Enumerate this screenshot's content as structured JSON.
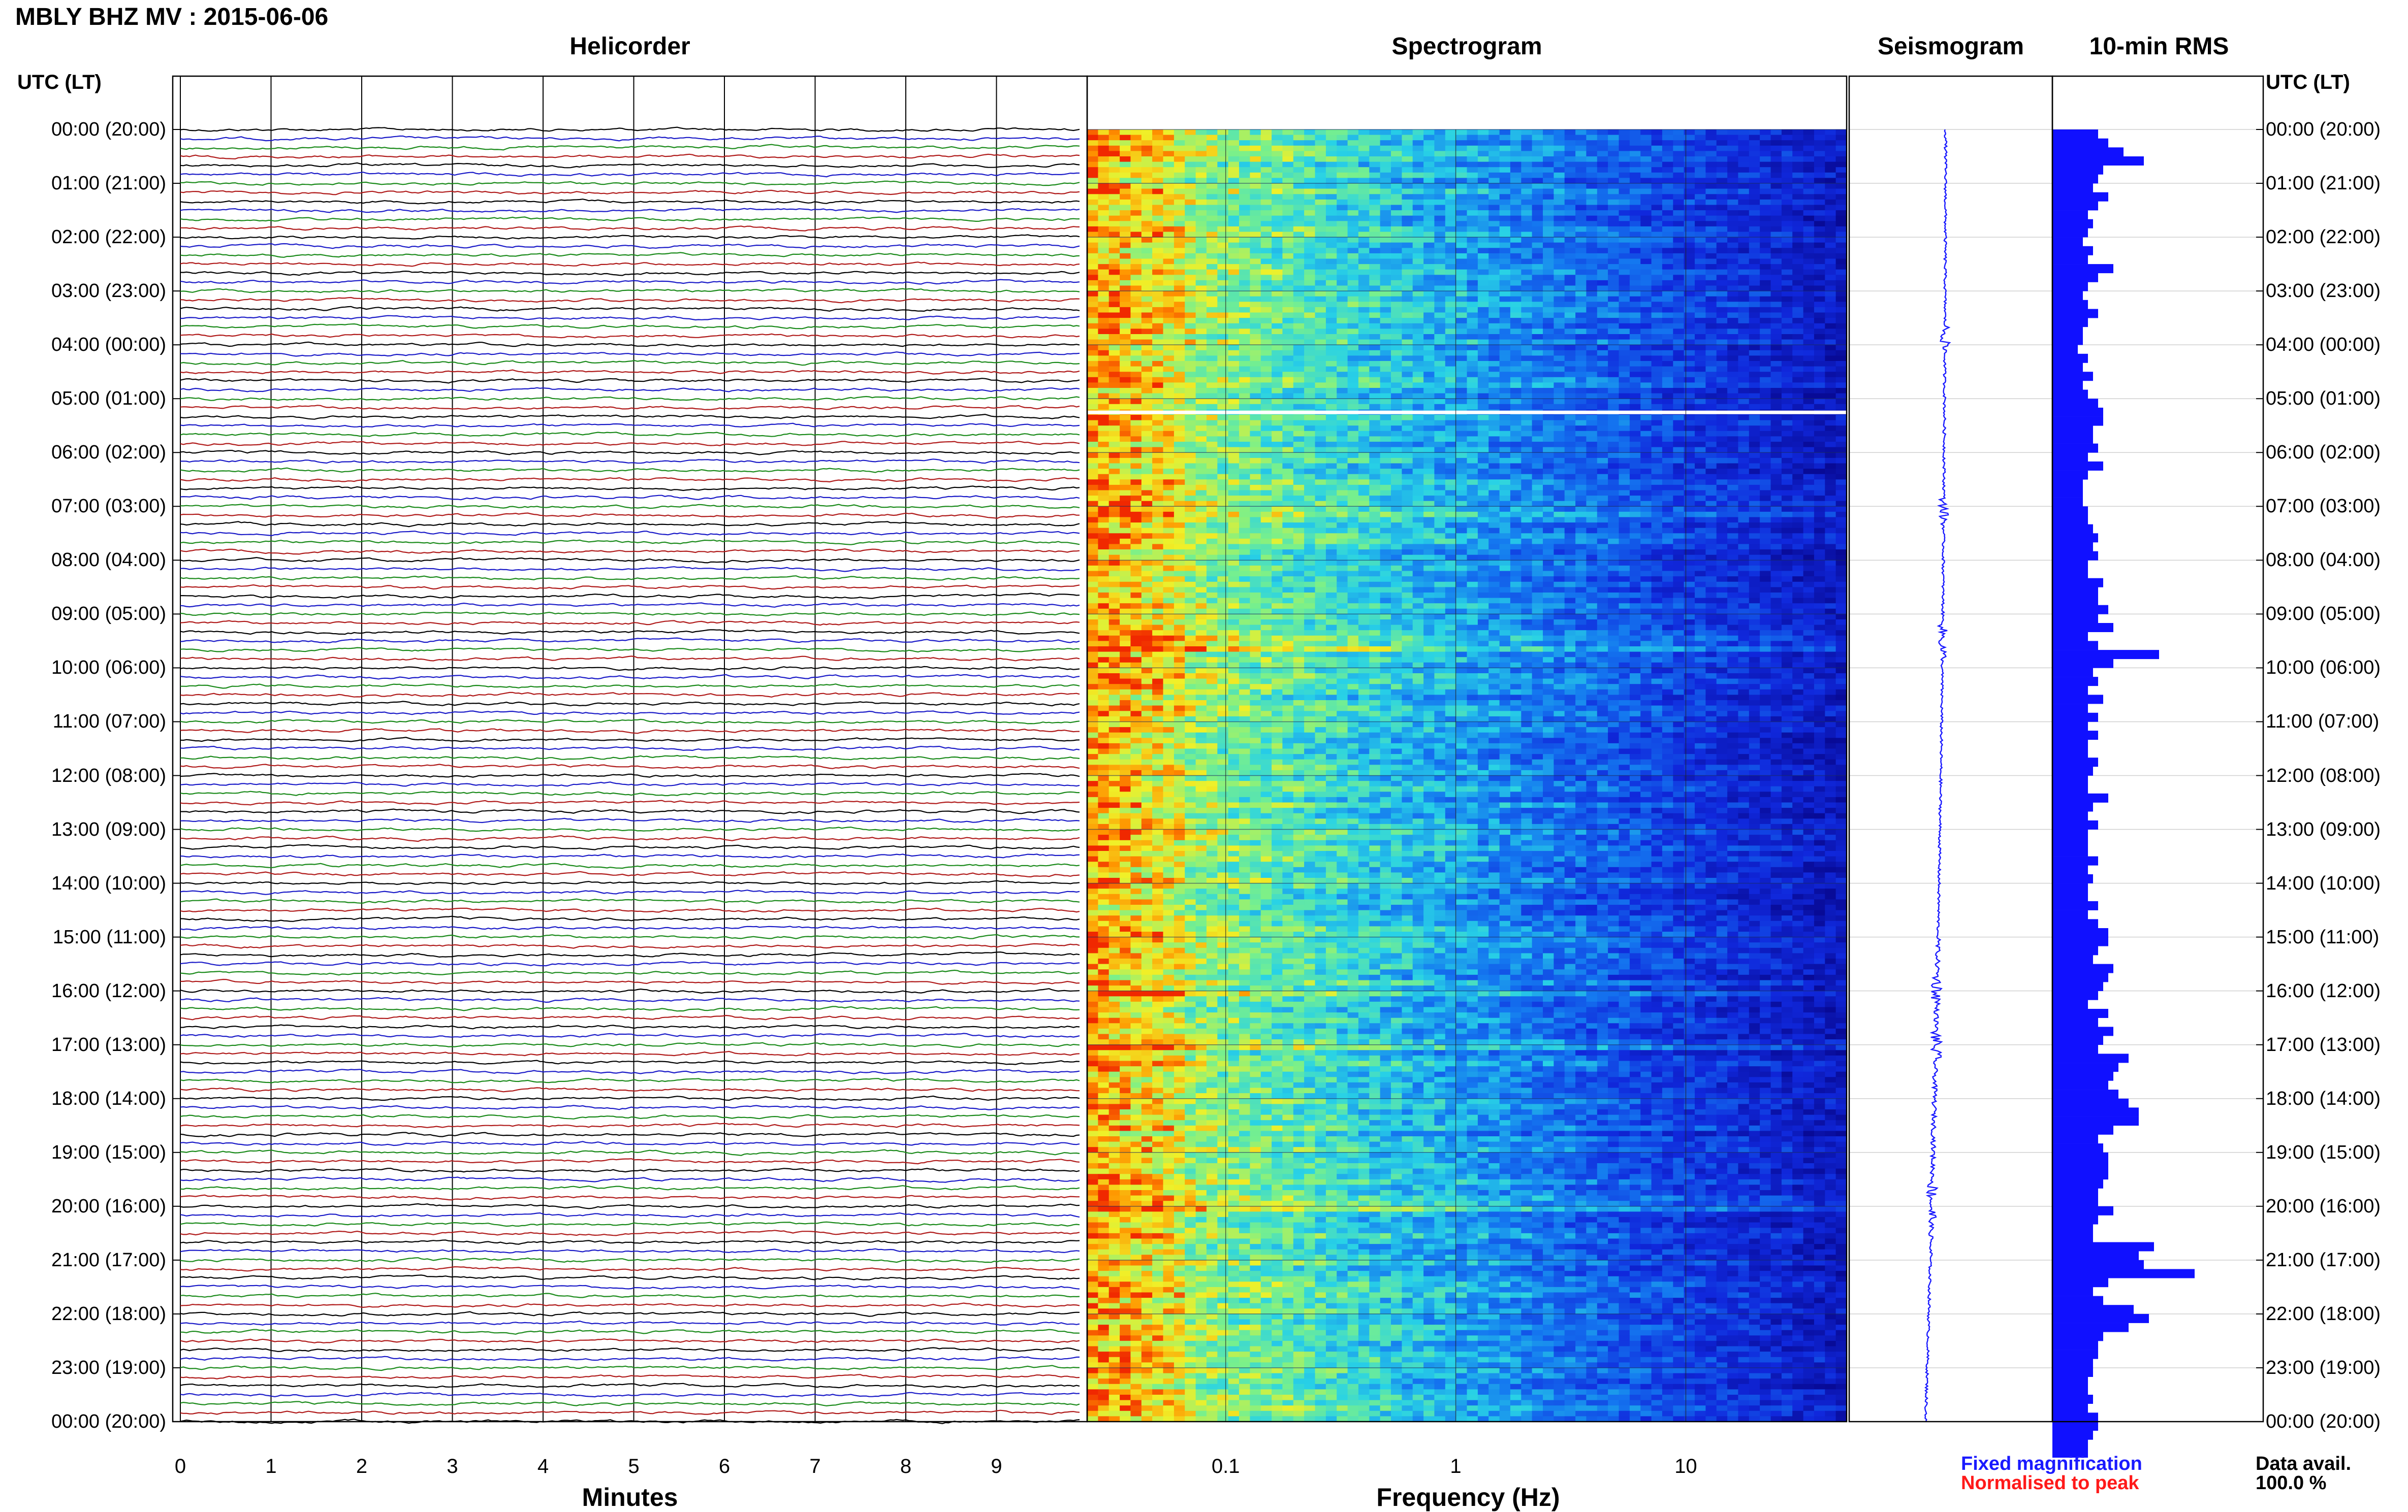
{
  "header": {
    "title": "MBLY BHZ MV : 2015-06-06"
  },
  "panels": {
    "helicorder": "Helicorder",
    "spectrogram": "Spectrogram",
    "seismogram": "Seismogram",
    "rms": "10-min RMS"
  },
  "axes": {
    "left_time_label": "UTC (LT)",
    "right_time_label": "UTC (LT)",
    "time_ticks": [
      "00:00 (20:00)",
      "01:00 (21:00)",
      "02:00 (22:00)",
      "03:00 (23:00)",
      "04:00 (00:00)",
      "05:00 (01:00)",
      "06:00 (02:00)",
      "07:00 (03:00)",
      "08:00 (04:00)",
      "09:00 (05:00)",
      "10:00 (06:00)",
      "11:00 (07:00)",
      "12:00 (08:00)",
      "13:00 (09:00)",
      "14:00 (10:00)",
      "15:00 (11:00)",
      "16:00 (12:00)",
      "17:00 (13:00)",
      "18:00 (14:00)",
      "19:00 (15:00)",
      "20:00 (16:00)",
      "21:00 (17:00)",
      "22:00 (18:00)",
      "23:00 (19:00)",
      "00:00 (20:00)"
    ],
    "minutes_label": "Minutes",
    "minute_ticks": [
      "0",
      "1",
      "2",
      "3",
      "4",
      "5",
      "6",
      "7",
      "8",
      "9"
    ],
    "frequency_label": "Frequency (Hz)",
    "frequency_ticks": [
      "0.1",
      "1",
      "10"
    ]
  },
  "legend": {
    "fixed": "Fixed magnification",
    "normalised": "Normalised to peak",
    "fixed_color": "#1a1aff",
    "normalised_color": "#ff1a1a"
  },
  "availability": {
    "label": "Data avail.",
    "value": "100.0 %"
  },
  "colors": {
    "trace_cycle": [
      "#000000",
      "#1a1ac8",
      "#1a8a1a",
      "#b01a1a"
    ],
    "spectrogram_low": "#1010c8",
    "spectrogram_high": "#ff3000",
    "rms_bar": "#1010ff",
    "seismogram_trace": "#1a1aff"
  },
  "chart_data": [
    {
      "type": "line",
      "title": "Helicorder",
      "xlabel": "Minutes",
      "x_ticks": [
        0,
        1,
        2,
        3,
        4,
        5,
        6,
        7,
        8,
        9
      ],
      "xlim": [
        0,
        10
      ],
      "ylim_utc_hours": [
        0,
        24
      ],
      "traces_per_hour": 6,
      "trace_color_cycle": [
        "black",
        "blue",
        "green",
        "red"
      ]
    },
    {
      "type": "heatmap",
      "title": "Spectrogram",
      "xlabel": "Frequency (Hz)",
      "x_scale": "log",
      "xlim_hz": [
        0.025,
        50
      ],
      "x_ticks": [
        0.1,
        1,
        10
      ],
      "ylim_utc_hours": [
        0,
        24
      ],
      "data_gap_utc_hours": [
        5.25
      ],
      "note_high_energy_utc_hours": [
        9.5,
        19.9
      ]
    },
    {
      "type": "line",
      "title": "Seismogram",
      "ylim_utc_hours": [
        0,
        24
      ]
    },
    {
      "type": "bar",
      "title": "10-min RMS",
      "orientation": "horizontal",
      "ylim_utc_hours": [
        0,
        24
      ],
      "bin_minutes": 10,
      "values_relative": [
        0.45,
        0.55,
        0.7,
        0.9,
        0.5,
        0.45,
        0.4,
        0.55,
        0.45,
        0.35,
        0.4,
        0.35,
        0.3,
        0.4,
        0.35,
        0.6,
        0.45,
        0.35,
        0.3,
        0.35,
        0.45,
        0.35,
        0.3,
        0.3,
        0.25,
        0.35,
        0.3,
        0.4,
        0.3,
        0.35,
        0.45,
        0.5,
        0.5,
        0.4,
        0.4,
        0.45,
        0.35,
        0.5,
        0.35,
        0.3,
        0.3,
        0.3,
        0.35,
        0.35,
        0.4,
        0.45,
        0.4,
        0.45,
        0.35,
        0.35,
        0.5,
        0.45,
        0.45,
        0.55,
        0.45,
        0.6,
        0.35,
        0.45,
        1.05,
        0.6,
        0.4,
        0.45,
        0.35,
        0.5,
        0.35,
        0.45,
        0.35,
        0.45,
        0.35,
        0.35,
        0.45,
        0.4,
        0.35,
        0.35,
        0.55,
        0.4,
        0.35,
        0.45,
        0.35,
        0.35,
        0.35,
        0.45,
        0.35,
        0.4,
        0.35,
        0.35,
        0.45,
        0.35,
        0.45,
        0.55,
        0.55,
        0.45,
        0.4,
        0.6,
        0.55,
        0.5,
        0.45,
        0.35,
        0.55,
        0.45,
        0.6,
        0.5,
        0.45,
        0.75,
        0.65,
        0.6,
        0.55,
        0.65,
        0.75,
        0.85,
        0.85,
        0.6,
        0.45,
        0.5,
        0.55,
        0.55,
        0.55,
        0.5,
        0.45,
        0.45,
        0.6,
        0.45,
        0.4,
        0.4,
        1.0,
        0.85,
        0.9,
        1.4,
        0.55,
        0.4,
        0.5,
        0.8,
        0.95,
        0.75,
        0.5,
        0.45,
        0.45,
        0.4,
        0.4,
        0.35,
        0.35,
        0.4,
        0.35,
        0.45,
        0.45,
        0.4,
        0.35,
        0.35
      ]
    }
  ]
}
